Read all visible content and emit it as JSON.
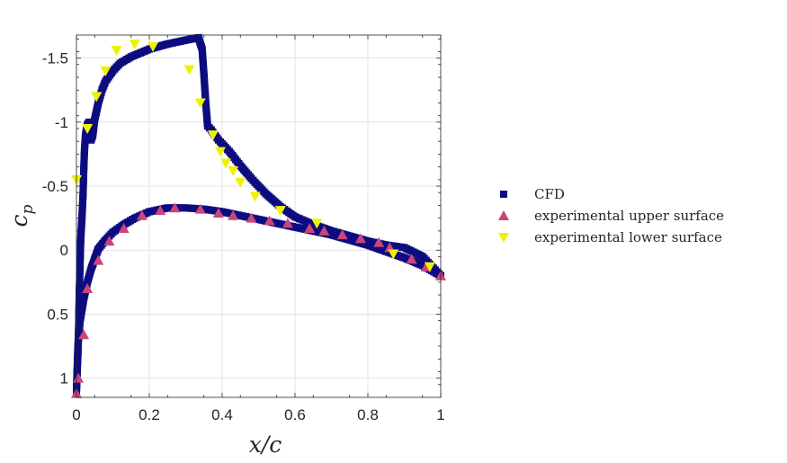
{
  "chart_data": {
    "type": "scatter",
    "xlabel": "x/c",
    "ylabel": "c_p",
    "xlim": [
      0,
      1
    ],
    "ylim": [
      1.15,
      -1.68
    ],
    "y_reversed": true,
    "grid": true,
    "legend_position": "right",
    "x_ticks": [
      0,
      0.2,
      0.4,
      0.6,
      0.8,
      1
    ],
    "x_tick_labels": [
      "0",
      "0.2",
      "0.4",
      "0.6",
      "0.8",
      "1"
    ],
    "y_ticks": [
      -1.5,
      -1,
      -0.5,
      0,
      0.5,
      1
    ],
    "y_tick_labels": [
      "-1.5",
      "-1",
      "-0.5",
      "0",
      "0.5",
      "1"
    ],
    "series": [
      {
        "name": "CFD",
        "marker": "square",
        "color": "#0c0c80",
        "upper_curve": [
          [
            0.0,
            1.1
          ],
          [
            0.002,
            0.95
          ],
          [
            0.004,
            0.82
          ],
          [
            0.006,
            0.6
          ],
          [
            0.008,
            0.3
          ],
          [
            0.01,
            0.1
          ],
          [
            0.012,
            -0.1
          ],
          [
            0.015,
            -0.25
          ],
          [
            0.018,
            -0.43
          ],
          [
            0.02,
            -0.62
          ],
          [
            0.022,
            -0.78
          ],
          [
            0.025,
            -0.9
          ],
          [
            0.03,
            -0.98
          ],
          [
            0.035,
            -1.0
          ],
          [
            0.04,
            -0.86
          ],
          [
            0.045,
            -0.9
          ],
          [
            0.05,
            -1.02
          ],
          [
            0.06,
            -1.15
          ],
          [
            0.07,
            -1.25
          ],
          [
            0.08,
            -1.32
          ],
          [
            0.1,
            -1.4
          ],
          [
            0.12,
            -1.46
          ],
          [
            0.15,
            -1.51
          ],
          [
            0.2,
            -1.57
          ],
          [
            0.25,
            -1.61
          ],
          [
            0.3,
            -1.64
          ],
          [
            0.335,
            -1.66
          ],
          [
            0.345,
            -1.57
          ],
          [
            0.35,
            -1.37
          ],
          [
            0.355,
            -1.15
          ],
          [
            0.36,
            -0.97
          ],
          [
            0.37,
            -0.94
          ],
          [
            0.39,
            -0.86
          ],
          [
            0.42,
            -0.77
          ],
          [
            0.45,
            -0.66
          ],
          [
            0.48,
            -0.56
          ],
          [
            0.52,
            -0.44
          ],
          [
            0.56,
            -0.34
          ],
          [
            0.6,
            -0.26
          ],
          [
            0.65,
            -0.2
          ],
          [
            0.7,
            -0.15
          ],
          [
            0.75,
            -0.11
          ],
          [
            0.8,
            -0.07
          ],
          [
            0.85,
            -0.04
          ],
          [
            0.9,
            -0.02
          ],
          [
            0.95,
            0.05
          ],
          [
            1.0,
            0.2
          ]
        ],
        "lower_curve": [
          [
            0.0,
            1.1
          ],
          [
            0.004,
            0.75
          ],
          [
            0.01,
            0.55
          ],
          [
            0.02,
            0.38
          ],
          [
            0.03,
            0.25
          ],
          [
            0.04,
            0.15
          ],
          [
            0.05,
            0.07
          ],
          [
            0.06,
            -0.01
          ],
          [
            0.08,
            -0.08
          ],
          [
            0.1,
            -0.14
          ],
          [
            0.13,
            -0.2
          ],
          [
            0.16,
            -0.25
          ],
          [
            0.2,
            -0.3
          ],
          [
            0.25,
            -0.33
          ],
          [
            0.3,
            -0.33
          ],
          [
            0.35,
            -0.32
          ],
          [
            0.4,
            -0.3
          ],
          [
            0.45,
            -0.27
          ],
          [
            0.5,
            -0.24
          ],
          [
            0.55,
            -0.21
          ],
          [
            0.6,
            -0.18
          ],
          [
            0.65,
            -0.15
          ],
          [
            0.7,
            -0.12
          ],
          [
            0.75,
            -0.08
          ],
          [
            0.8,
            -0.04
          ],
          [
            0.85,
            0.01
          ],
          [
            0.9,
            0.06
          ],
          [
            0.95,
            0.12
          ],
          [
            1.0,
            0.2
          ]
        ]
      },
      {
        "name": "experimental upper surface",
        "marker": "triangle-up",
        "color": "#c9457a",
        "points": [
          [
            0.0,
            1.12
          ],
          [
            0.005,
            1.0
          ],
          [
            0.02,
            0.66
          ],
          [
            0.03,
            0.3
          ],
          [
            0.06,
            0.08
          ],
          [
            0.09,
            -0.07
          ],
          [
            0.13,
            -0.17
          ],
          [
            0.18,
            -0.27
          ],
          [
            0.23,
            -0.31
          ],
          [
            0.27,
            -0.33
          ],
          [
            0.34,
            -0.32
          ],
          [
            0.39,
            -0.29
          ],
          [
            0.43,
            -0.27
          ],
          [
            0.48,
            -0.25
          ],
          [
            0.53,
            -0.23
          ],
          [
            0.58,
            -0.21
          ],
          [
            0.64,
            -0.17
          ],
          [
            0.68,
            -0.15
          ],
          [
            0.73,
            -0.12
          ],
          [
            0.78,
            -0.09
          ],
          [
            0.83,
            -0.06
          ],
          [
            0.86,
            -0.02
          ],
          [
            0.92,
            0.07
          ],
          [
            0.96,
            0.13
          ],
          [
            1.0,
            0.2
          ]
        ]
      },
      {
        "name": "experimental lower surface",
        "marker": "triangle-down",
        "color": "#eef200",
        "points": [
          [
            0.0,
            -0.55
          ],
          [
            0.03,
            -0.95
          ],
          [
            0.055,
            -1.2
          ],
          [
            0.08,
            -1.4
          ],
          [
            0.11,
            -1.56
          ],
          [
            0.16,
            -1.61
          ],
          [
            0.21,
            -1.59
          ],
          [
            0.31,
            -1.41
          ],
          [
            0.34,
            -1.15
          ],
          [
            0.375,
            -0.9
          ],
          [
            0.395,
            -0.77
          ],
          [
            0.41,
            -0.68
          ],
          [
            0.43,
            -0.62
          ],
          [
            0.45,
            -0.53
          ],
          [
            0.49,
            -0.42
          ],
          [
            0.56,
            -0.31
          ],
          [
            0.66,
            -0.21
          ],
          [
            0.87,
            0.03
          ],
          [
            0.97,
            0.13
          ]
        ]
      }
    ]
  }
}
